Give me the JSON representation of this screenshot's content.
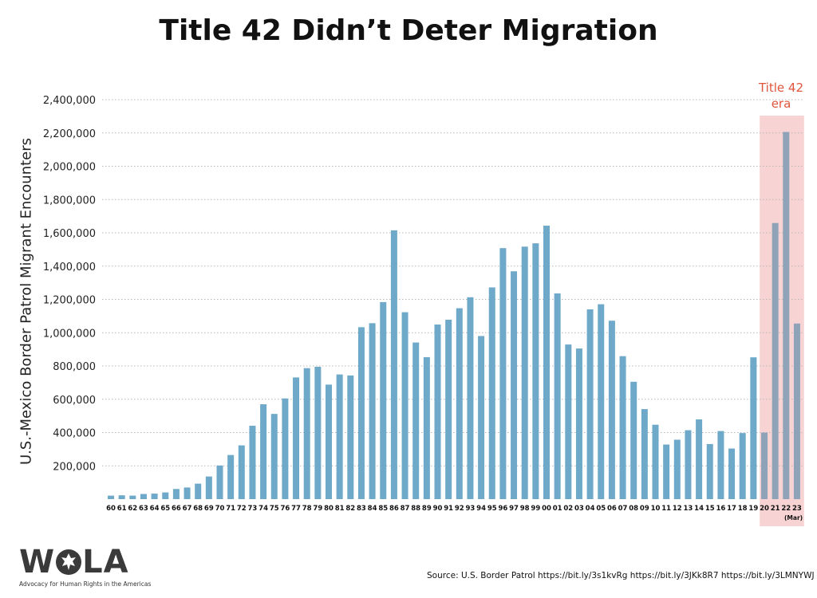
{
  "chart_data": {
    "type": "bar",
    "title": "Title 42 Didn’t Deter Migration",
    "ylabel": "U.S.-Mexico Border Patrol Migrant Encounters",
    "xlabel": "",
    "ylim": [
      0,
      2400000
    ],
    "yticks": [
      200000,
      400000,
      600000,
      800000,
      1000000,
      1200000,
      1400000,
      1600000,
      1800000,
      2000000,
      2200000,
      2400000
    ],
    "ytick_labels": [
      "200,000",
      "400,000",
      "600,000",
      "800,000",
      "1,000,000",
      "1,200,000",
      "1,400,000",
      "1,600,000",
      "1,800,000",
      "2,000,000",
      "2,200,000",
      "2,400,000"
    ],
    "grid": "horizontal dotted",
    "categories": [
      "60",
      "61",
      "62",
      "63",
      "64",
      "65",
      "66",
      "67",
      "68",
      "69",
      "70",
      "71",
      "72",
      "73",
      "74",
      "75",
      "76",
      "77",
      "78",
      "79",
      "80",
      "81",
      "82",
      "83",
      "84",
      "85",
      "86",
      "87",
      "88",
      "89",
      "90",
      "91",
      "92",
      "93",
      "94",
      "95",
      "96",
      "97",
      "98",
      "99",
      "00",
      "01",
      "02",
      "03",
      "04",
      "05",
      "06",
      "07",
      "08",
      "09",
      "10",
      "11",
      "12",
      "13",
      "14",
      "15",
      "16",
      "17",
      "18",
      "19",
      "20",
      "21",
      "22",
      "23"
    ],
    "values": [
      21000,
      23000,
      21000,
      31000,
      33000,
      40000,
      61000,
      70000,
      93000,
      136000,
      202000,
      265000,
      323000,
      441000,
      570000,
      512000,
      605000,
      731000,
      787000,
      795000,
      688000,
      749000,
      743000,
      1033000,
      1057000,
      1184000,
      1615000,
      1123000,
      941000,
      853000,
      1049000,
      1078000,
      1147000,
      1213000,
      980000,
      1272000,
      1508000,
      1369000,
      1517000,
      1537000,
      1643000,
      1236000,
      929000,
      905000,
      1140000,
      1171000,
      1072000,
      859000,
      705000,
      541000,
      447000,
      328000,
      357000,
      414000,
      479000,
      331000,
      409000,
      304000,
      397000,
      852000,
      400000,
      1659000,
      2206000,
      1055000
    ],
    "highlight": {
      "label_line1": "Title 42",
      "label_line2": "era",
      "from_category": "20",
      "to_category": "23",
      "band_color": "#f7d3d3",
      "label_color": "#e0553c"
    },
    "extra_tick_note": "(Mar)",
    "bar_color": "#6ea9c9",
    "highlight_bar_color": "#8fa3b8"
  },
  "logo": {
    "name": "WOLA",
    "tagline": "Advocacy for Human Rights in the Americas"
  },
  "source": "Source: U.S. Border Patrol https://bit.ly/3s1kvRg  https://bit.ly/3JKk8R7 https://bit.ly/3LMNYWJ"
}
